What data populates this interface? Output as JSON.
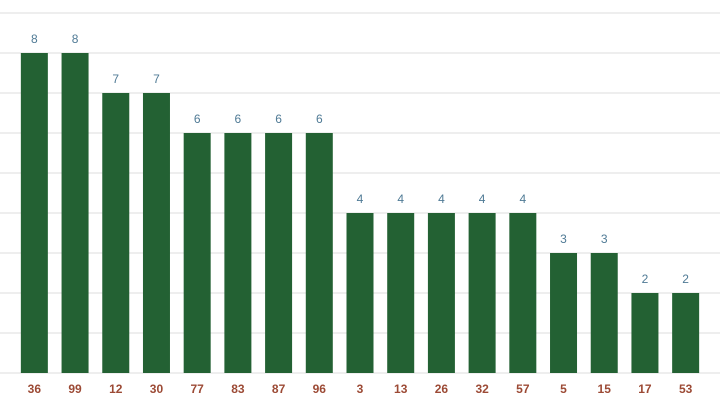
{
  "chart_data": {
    "type": "bar",
    "categories": [
      "36",
      "99",
      "12",
      "30",
      "77",
      "83",
      "87",
      "96",
      "3",
      "13",
      "26",
      "32",
      "57",
      "5",
      "15",
      "17",
      "53"
    ],
    "values": [
      8,
      8,
      7,
      7,
      6,
      6,
      6,
      6,
      4,
      4,
      4,
      4,
      4,
      3,
      3,
      2,
      2
    ],
    "color": "#236133",
    "ylim": [
      0,
      9
    ],
    "yticks": [
      0,
      1,
      2,
      3,
      4,
      5,
      6,
      7,
      8,
      9
    ],
    "grid": true,
    "ytick_labels": false
  }
}
